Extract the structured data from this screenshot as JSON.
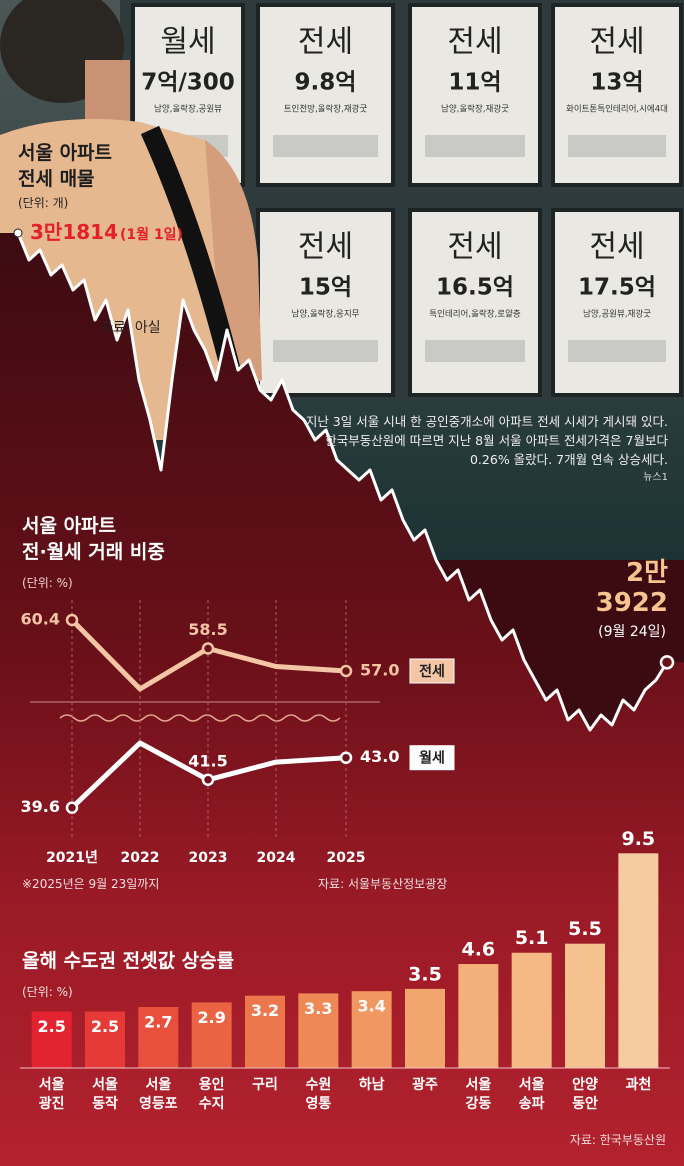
{
  "photo": {
    "signs": [
      {
        "type": "월세",
        "price": "7억/300",
        "detail": "남양,올락장,공원뷰"
      },
      {
        "type": "전세",
        "price": "9.8억",
        "detail": "트인전망,올락장,재광굿"
      },
      {
        "type": "전세",
        "price": "11억",
        "detail": "남양,올락장,재광굿"
      },
      {
        "type": "전세",
        "price": "13억",
        "detail": "화이트톤특인테리어,시에4대"
      },
      {
        "type": "전세",
        "price": "15억",
        "detail": "남양,올락장,응지무"
      },
      {
        "type": "전세",
        "price": "16.5억",
        "detail": "특인테리어,올락장,로얄층"
      },
      {
        "type": "전세",
        "price": "17.5억",
        "detail": "남양,공원뷰,재광굿"
      }
    ],
    "caption": "지난 3일 서울 시내 한 공인중개소에 아파트 전세 시세가 게시돼 있다. 한국부동산원에 따르면 지난 8월 서울 아파트 전세가격은 7월보다 0.26% 올랐다. 7개월 연속 상승세다.",
    "credit": "뉴스1"
  },
  "chart_data": [
    {
      "type": "line",
      "title": [
        "서울 아파트",
        "전세 매물"
      ],
      "unit": "(단위: 개)",
      "source": "자료: 아실",
      "color": "#ffffff",
      "values": [
        31814,
        31318,
        31502,
        31042,
        31226,
        30766,
        30950,
        30215,
        30582,
        29847,
        30399,
        29112,
        28376,
        27457,
        29112,
        30582,
        30031,
        29663,
        29112,
        30031,
        29296,
        29479,
        28928,
        28744,
        29112,
        28560,
        28376,
        28009,
        28193,
        27641,
        27457,
        27274,
        27457,
        26906,
        27090,
        26538,
        26171,
        26354,
        25803,
        25435,
        25619,
        25068,
        25251,
        24700,
        24332,
        24516,
        23965,
        23597,
        23229,
        23413,
        22862,
        23046,
        22678,
        22954,
        22770,
        23229,
        23046,
        23413,
        23597,
        23922
      ],
      "value_labels": [
        "3만1814",
        null,
        null,
        null,
        null,
        null,
        null,
        null,
        null,
        null,
        null,
        null,
        null,
        null,
        null,
        null,
        null,
        null,
        null,
        null,
        null,
        null,
        null,
        null,
        null,
        null,
        null,
        null,
        null,
        null,
        null,
        null,
        null,
        null,
        null,
        null,
        null,
        null,
        null,
        null,
        null,
        null,
        null,
        null,
        null,
        null,
        null,
        null,
        null,
        null,
        null,
        null,
        null,
        null,
        null,
        null,
        null,
        null,
        null,
        "2만 3922"
      ],
      "x": [
        "(1월 1일)",
        null,
        null,
        null,
        null,
        null,
        null,
        null,
        null,
        null,
        null,
        null,
        null,
        null,
        null,
        null,
        null,
        null,
        null,
        null,
        null,
        null,
        null,
        null,
        null,
        null,
        null,
        null,
        null,
        null,
        null,
        null,
        null,
        null,
        null,
        null,
        null,
        null,
        null,
        null,
        null,
        null,
        null,
        null,
        null,
        null,
        null,
        null,
        null,
        null,
        null,
        null,
        null,
        null,
        null,
        null,
        null,
        null,
        null,
        "(9월 24일)"
      ]
    },
    {
      "type": "line",
      "title": [
        "서울 아파트",
        "전·월세 거래 비중"
      ],
      "unit": "(단위: %)",
      "categories": [
        "2021년",
        "2022",
        "2023",
        "2024",
        "2025"
      ],
      "series": [
        {
          "name": "전세",
          "color": "#f5c6a5",
          "values": [
            60.4,
            55.8,
            58.5,
            57.3,
            57.0
          ],
          "value_labels": [
            "60.4",
            null,
            "58.5",
            null,
            "57.0"
          ]
        },
        {
          "name": "월세",
          "color": "#ffffff",
          "values": [
            39.6,
            44.0,
            41.5,
            42.7,
            43.0
          ],
          "value_labels": [
            "39.6",
            null,
            "41.5",
            null,
            "43.0"
          ]
        }
      ],
      "note": "※2025년은 9월 23일까지",
      "source": "자료: 서울부동산정보광장"
    },
    {
      "type": "bar",
      "title": "올해 수도권 전셋값 상승률",
      "unit": "(단위: %)",
      "source": "자료: 한국부동산원",
      "categories": [
        "서울 광진",
        "서울 동작",
        "서울 영등포",
        "용인 수지",
        "구리",
        "수원 영통",
        "하남",
        "광주",
        "서울 강동",
        "서울 송파",
        "안양 동안",
        "과천"
      ],
      "values": [
        2.5,
        2.5,
        2.7,
        2.9,
        3.2,
        3.3,
        3.4,
        3.5,
        4.6,
        5.1,
        5.5,
        9.5
      ],
      "colors": [
        "#e42330",
        "#e63a36",
        "#e8503d",
        "#ea6444",
        "#ec774c",
        "#ee8856",
        "#f09762",
        "#f2a56e",
        "#f3b07a",
        "#f4b985",
        "#f5c18f",
        "#f7cba0"
      ]
    }
  ]
}
